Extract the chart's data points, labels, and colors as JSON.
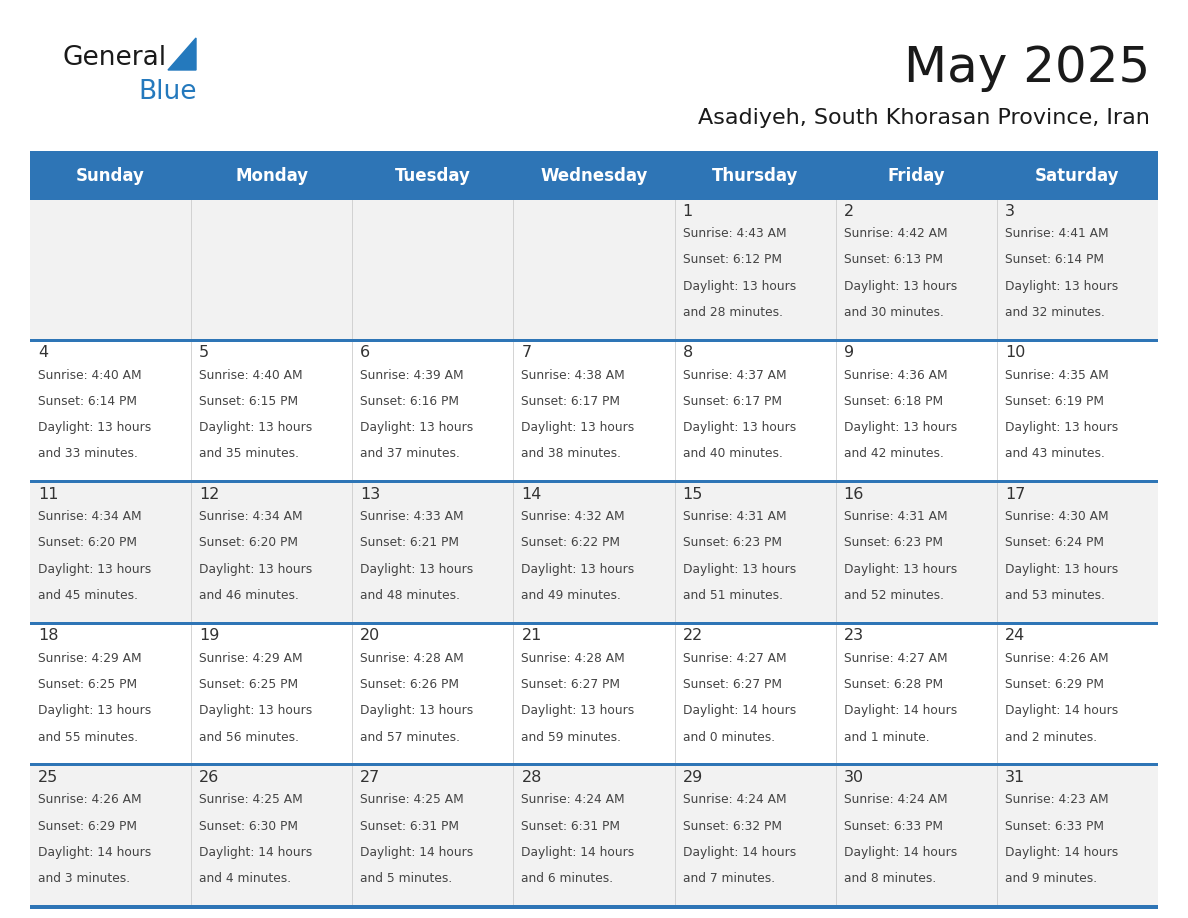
{
  "title": "May 2025",
  "subtitle": "Asadiyeh, South Khorasan Province, Iran",
  "days_of_week": [
    "Sunday",
    "Monday",
    "Tuesday",
    "Wednesday",
    "Thursday",
    "Friday",
    "Saturday"
  ],
  "header_bg": "#2E75B6",
  "header_text_color": "#FFFFFF",
  "row_bg_odd": "#F2F2F2",
  "row_bg_even": "#FFFFFF",
  "separator_color": "#2E75B6",
  "cell_text_color": "#444444",
  "date_color": "#333333",
  "title_color": "#1a1a1a",
  "logo_color_general": "#1a1a1a",
  "logo_color_blue": "#2479BD",
  "logo_triangle_color": "#2479BD",
  "calendar_data": [
    [
      null,
      null,
      null,
      null,
      {
        "day": 1,
        "sunrise": "4:43 AM",
        "sunset": "6:12 PM",
        "dl1": "Daylight: 13 hours",
        "dl2": "and 28 minutes."
      },
      {
        "day": 2,
        "sunrise": "4:42 AM",
        "sunset": "6:13 PM",
        "dl1": "Daylight: 13 hours",
        "dl2": "and 30 minutes."
      },
      {
        "day": 3,
        "sunrise": "4:41 AM",
        "sunset": "6:14 PM",
        "dl1": "Daylight: 13 hours",
        "dl2": "and 32 minutes."
      }
    ],
    [
      {
        "day": 4,
        "sunrise": "4:40 AM",
        "sunset": "6:14 PM",
        "dl1": "Daylight: 13 hours",
        "dl2": "and 33 minutes."
      },
      {
        "day": 5,
        "sunrise": "4:40 AM",
        "sunset": "6:15 PM",
        "dl1": "Daylight: 13 hours",
        "dl2": "and 35 minutes."
      },
      {
        "day": 6,
        "sunrise": "4:39 AM",
        "sunset": "6:16 PM",
        "dl1": "Daylight: 13 hours",
        "dl2": "and 37 minutes."
      },
      {
        "day": 7,
        "sunrise": "4:38 AM",
        "sunset": "6:17 PM",
        "dl1": "Daylight: 13 hours",
        "dl2": "and 38 minutes."
      },
      {
        "day": 8,
        "sunrise": "4:37 AM",
        "sunset": "6:17 PM",
        "dl1": "Daylight: 13 hours",
        "dl2": "and 40 minutes."
      },
      {
        "day": 9,
        "sunrise": "4:36 AM",
        "sunset": "6:18 PM",
        "dl1": "Daylight: 13 hours",
        "dl2": "and 42 minutes."
      },
      {
        "day": 10,
        "sunrise": "4:35 AM",
        "sunset": "6:19 PM",
        "dl1": "Daylight: 13 hours",
        "dl2": "and 43 minutes."
      }
    ],
    [
      {
        "day": 11,
        "sunrise": "4:34 AM",
        "sunset": "6:20 PM",
        "dl1": "Daylight: 13 hours",
        "dl2": "and 45 minutes."
      },
      {
        "day": 12,
        "sunrise": "4:34 AM",
        "sunset": "6:20 PM",
        "dl1": "Daylight: 13 hours",
        "dl2": "and 46 minutes."
      },
      {
        "day": 13,
        "sunrise": "4:33 AM",
        "sunset": "6:21 PM",
        "dl1": "Daylight: 13 hours",
        "dl2": "and 48 minutes."
      },
      {
        "day": 14,
        "sunrise": "4:32 AM",
        "sunset": "6:22 PM",
        "dl1": "Daylight: 13 hours",
        "dl2": "and 49 minutes."
      },
      {
        "day": 15,
        "sunrise": "4:31 AM",
        "sunset": "6:23 PM",
        "dl1": "Daylight: 13 hours",
        "dl2": "and 51 minutes."
      },
      {
        "day": 16,
        "sunrise": "4:31 AM",
        "sunset": "6:23 PM",
        "dl1": "Daylight: 13 hours",
        "dl2": "and 52 minutes."
      },
      {
        "day": 17,
        "sunrise": "4:30 AM",
        "sunset": "6:24 PM",
        "dl1": "Daylight: 13 hours",
        "dl2": "and 53 minutes."
      }
    ],
    [
      {
        "day": 18,
        "sunrise": "4:29 AM",
        "sunset": "6:25 PM",
        "dl1": "Daylight: 13 hours",
        "dl2": "and 55 minutes."
      },
      {
        "day": 19,
        "sunrise": "4:29 AM",
        "sunset": "6:25 PM",
        "dl1": "Daylight: 13 hours",
        "dl2": "and 56 minutes."
      },
      {
        "day": 20,
        "sunrise": "4:28 AM",
        "sunset": "6:26 PM",
        "dl1": "Daylight: 13 hours",
        "dl2": "and 57 minutes."
      },
      {
        "day": 21,
        "sunrise": "4:28 AM",
        "sunset": "6:27 PM",
        "dl1": "Daylight: 13 hours",
        "dl2": "and 59 minutes."
      },
      {
        "day": 22,
        "sunrise": "4:27 AM",
        "sunset": "6:27 PM",
        "dl1": "Daylight: 14 hours",
        "dl2": "and 0 minutes."
      },
      {
        "day": 23,
        "sunrise": "4:27 AM",
        "sunset": "6:28 PM",
        "dl1": "Daylight: 14 hours",
        "dl2": "and 1 minute."
      },
      {
        "day": 24,
        "sunrise": "4:26 AM",
        "sunset": "6:29 PM",
        "dl1": "Daylight: 14 hours",
        "dl2": "and 2 minutes."
      }
    ],
    [
      {
        "day": 25,
        "sunrise": "4:26 AM",
        "sunset": "6:29 PM",
        "dl1": "Daylight: 14 hours",
        "dl2": "and 3 minutes."
      },
      {
        "day": 26,
        "sunrise": "4:25 AM",
        "sunset": "6:30 PM",
        "dl1": "Daylight: 14 hours",
        "dl2": "and 4 minutes."
      },
      {
        "day": 27,
        "sunrise": "4:25 AM",
        "sunset": "6:31 PM",
        "dl1": "Daylight: 14 hours",
        "dl2": "and 5 minutes."
      },
      {
        "day": 28,
        "sunrise": "4:24 AM",
        "sunset": "6:31 PM",
        "dl1": "Daylight: 14 hours",
        "dl2": "and 6 minutes."
      },
      {
        "day": 29,
        "sunrise": "4:24 AM",
        "sunset": "6:32 PM",
        "dl1": "Daylight: 14 hours",
        "dl2": "and 7 minutes."
      },
      {
        "day": 30,
        "sunrise": "4:24 AM",
        "sunset": "6:33 PM",
        "dl1": "Daylight: 14 hours",
        "dl2": "and 8 minutes."
      },
      {
        "day": 31,
        "sunrise": "4:23 AM",
        "sunset": "6:33 PM",
        "dl1": "Daylight: 14 hours",
        "dl2": "and 9 minutes."
      }
    ]
  ]
}
